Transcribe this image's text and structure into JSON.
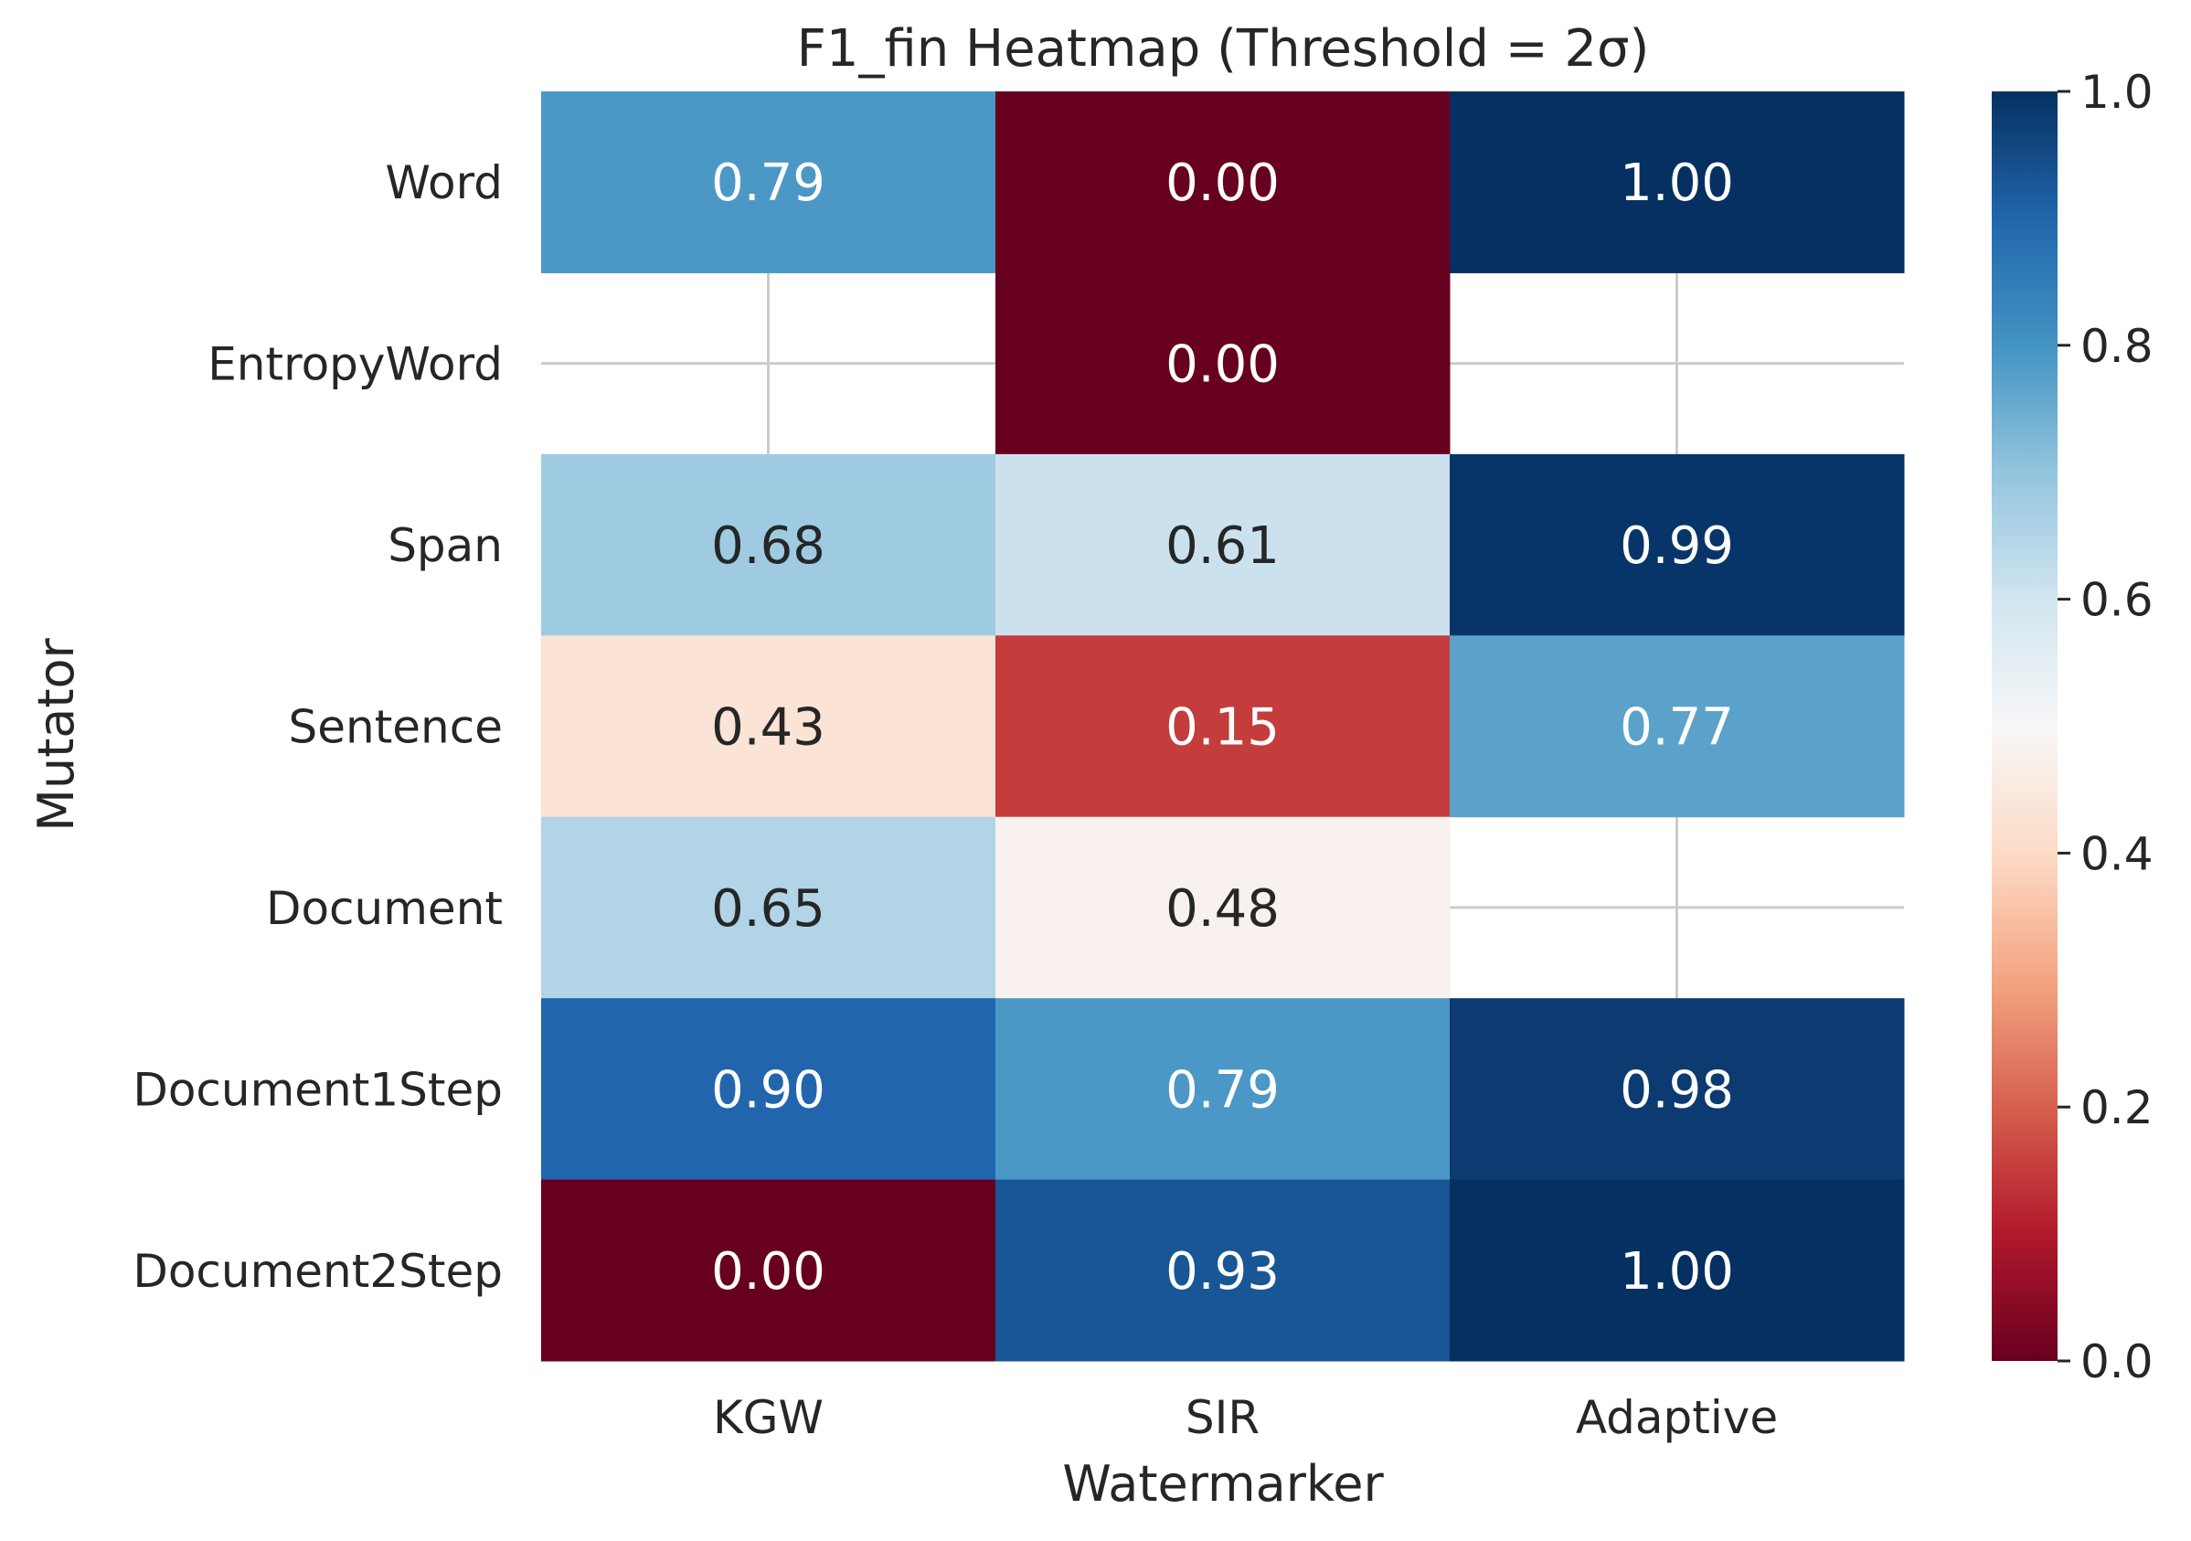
{
  "chart_data": {
    "type": "heatmap",
    "title": "F1_fin Heatmap (Threshold = 2σ)",
    "xlabel": "Watermarker",
    "ylabel": "Mutator",
    "columns": [
      "KGW",
      "SIR",
      "Adaptive"
    ],
    "rows": [
      "Word",
      "EntropyWord",
      "Span",
      "Sentence",
      "Document",
      "Document1Step",
      "Document2Step"
    ],
    "values": [
      [
        0.79,
        0.0,
        1.0
      ],
      [
        null,
        0.0,
        null
      ],
      [
        0.68,
        0.61,
        0.99
      ],
      [
        0.43,
        0.15,
        0.77
      ],
      [
        0.65,
        0.48,
        null
      ],
      [
        0.9,
        0.79,
        0.98
      ],
      [
        0.0,
        0.93,
        1.0
      ]
    ],
    "colormap": "RdBu",
    "vmin": 0.0,
    "vmax": 1.0,
    "colorbar_ticks": [
      "0.0",
      "0.2",
      "0.4",
      "0.6",
      "0.8",
      "1.0"
    ],
    "grid": true
  }
}
